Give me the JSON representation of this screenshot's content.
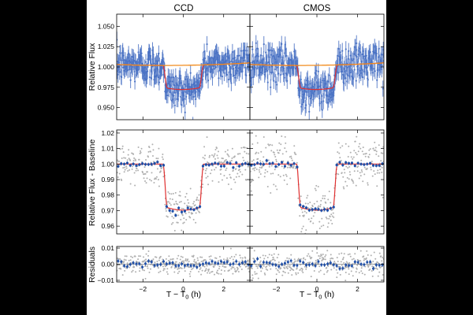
{
  "chart_data": {
    "type": "scatter",
    "columns": [
      "CCD",
      "CMOS"
    ],
    "xlabel": "T − T",
    "xlabel_sub": "0",
    "xlabel_unit": " (h)",
    "xlim": [
      -3.3,
      3.3
    ],
    "xticks": [
      {
        "v": -2,
        "label": "−2"
      },
      {
        "v": 0,
        "label": "0"
      },
      {
        "v": 2,
        "label": "2"
      }
    ],
    "transit": {
      "t1": -1.0,
      "t2": -0.8,
      "t3": 0.8,
      "t4": 1.0,
      "depth": 0.028
    },
    "panels": [
      {
        "name": "raw",
        "ylabel": "Relative Flux",
        "ylim": [
          0.935,
          1.065
        ],
        "yticks": [
          {
            "v": 0.95,
            "label": "0.950"
          },
          {
            "v": 0.975,
            "label": "0.975"
          },
          {
            "v": 1.0,
            "label": "1.000"
          },
          {
            "v": 1.025,
            "label": "1.025"
          },
          {
            "v": 1.05,
            "label": "1.050"
          }
        ],
        "series": [
          {
            "name": "data with errorbars",
            "color": "#4a72c4",
            "scatter_sigma": 0.011
          },
          {
            "name": "baseline model",
            "color": "#f28c1e",
            "trend": [
              1.003,
              1.0,
              1.005
            ]
          },
          {
            "name": "transit model",
            "color": "#e03030"
          }
        ]
      },
      {
        "name": "detrended",
        "ylabel": "Relative Flux - Baseline",
        "ylim": [
          0.955,
          1.022
        ],
        "yticks": [
          {
            "v": 0.96,
            "label": "0.96"
          },
          {
            "v": 0.97,
            "label": "0.97"
          },
          {
            "v": 0.98,
            "label": "0.98"
          },
          {
            "v": 0.99,
            "label": "0.99"
          },
          {
            "v": 1.0,
            "label": "1.00"
          },
          {
            "v": 1.01,
            "label": "1.01"
          },
          {
            "v": 1.02,
            "label": "1.02"
          }
        ],
        "series": [
          {
            "name": "unbinned data",
            "color": "#b0b0b0",
            "scatter_sigma": 0.0075
          },
          {
            "name": "binned data",
            "color": "#1f4fa8",
            "bin_width_h": 0.15
          },
          {
            "name": "transit model",
            "color": "#e03030"
          }
        ]
      },
      {
        "name": "residuals",
        "ylabel": "Residuals",
        "ylim": [
          -0.011,
          0.011
        ],
        "yticks": [
          {
            "v": -0.01,
            "label": "−0.01"
          },
          {
            "v": 0.0,
            "label": "0.00"
          },
          {
            "v": 0.01,
            "label": "0.01"
          }
        ],
        "series": [
          {
            "name": "unbinned residuals",
            "color": "#b0b0b0",
            "scatter_sigma": 0.0035
          },
          {
            "name": "binned residuals",
            "color": "#1f4fa8"
          },
          {
            "name": "zero line",
            "color": "#888888"
          }
        ]
      }
    ]
  }
}
